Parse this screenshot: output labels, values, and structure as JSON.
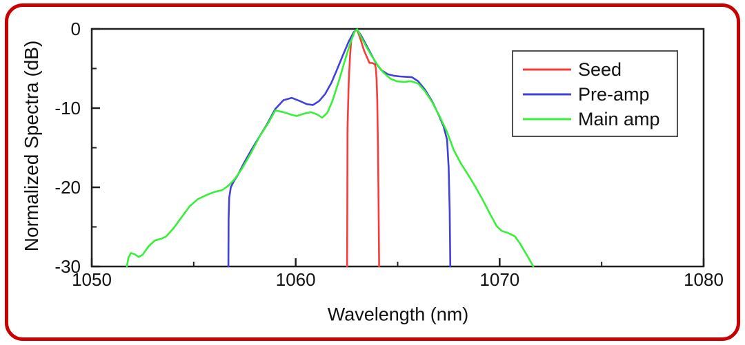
{
  "frame": {
    "border_color": "#c90000"
  },
  "axis": {
    "spine_color": "#1f1f1f",
    "tick_label_color": "#111111",
    "tick_label_font_px": 26
  },
  "legend_box": {
    "border_color": "#515151",
    "background": "#ffffff"
  },
  "chart_data": {
    "type": "line",
    "title": "",
    "xlabel": "Wavelength (nm)",
    "ylabel": "Normalized Spectra (dB)",
    "xlim": [
      1050,
      1080
    ],
    "ylim": [
      -30,
      0
    ],
    "x_major_ticks": [
      1050,
      1060,
      1070,
      1080
    ],
    "x_minor_ticks": [
      1055,
      1065,
      1075
    ],
    "y_major_ticks": [
      0,
      -10,
      -20,
      -30
    ],
    "y_minor_ticks": [
      -5,
      -15,
      -25
    ],
    "grid": false,
    "legend": {
      "position": "top-right",
      "entries": [
        "Seed",
        "Pre-amp",
        "Main amp"
      ]
    },
    "series": [
      {
        "name": "Seed",
        "color": "#fb3a3a",
        "points": [
          [
            1062.52,
            -30
          ],
          [
            1062.54,
            -12.5
          ],
          [
            1062.6,
            -6.8
          ],
          [
            1062.67,
            -3.2
          ],
          [
            1062.73,
            -1.2
          ],
          [
            1062.85,
            -0.4
          ],
          [
            1063.0,
            -0.05
          ],
          [
            1063.15,
            -1.1
          ],
          [
            1063.35,
            -2.7
          ],
          [
            1063.55,
            -3.9
          ],
          [
            1063.62,
            -4.3
          ],
          [
            1063.75,
            -4.3
          ],
          [
            1063.88,
            -4.45
          ],
          [
            1063.93,
            -5.0
          ],
          [
            1063.97,
            -6.5
          ],
          [
            1064.0,
            -9.0
          ],
          [
            1064.04,
            -16.0
          ],
          [
            1064.07,
            -24.0
          ],
          [
            1064.09,
            -30
          ]
        ]
      },
      {
        "name": "Pre-amp",
        "color": "#4040dd",
        "points": [
          [
            1056.7,
            -30
          ],
          [
            1056.71,
            -24.0
          ],
          [
            1056.74,
            -21.3
          ],
          [
            1056.82,
            -20.0
          ],
          [
            1056.95,
            -19.3
          ],
          [
            1057.15,
            -18.5
          ],
          [
            1057.45,
            -17.0
          ],
          [
            1057.8,
            -15.4
          ],
          [
            1058.2,
            -13.7
          ],
          [
            1058.6,
            -12.0
          ],
          [
            1059.0,
            -10.1
          ],
          [
            1059.4,
            -9.0
          ],
          [
            1059.8,
            -8.7
          ],
          [
            1060.2,
            -9.1
          ],
          [
            1060.55,
            -9.5
          ],
          [
            1060.85,
            -9.6
          ],
          [
            1061.15,
            -9.1
          ],
          [
            1061.45,
            -8.2
          ],
          [
            1061.75,
            -6.8
          ],
          [
            1062.0,
            -5.3
          ],
          [
            1062.3,
            -3.4
          ],
          [
            1062.6,
            -1.6
          ],
          [
            1062.85,
            -0.4
          ],
          [
            1063.0,
            -0.05
          ],
          [
            1063.2,
            -0.8
          ],
          [
            1063.45,
            -2.0
          ],
          [
            1063.7,
            -3.2
          ],
          [
            1063.95,
            -4.4
          ],
          [
            1064.2,
            -5.2
          ],
          [
            1064.5,
            -5.7
          ],
          [
            1064.8,
            -5.9
          ],
          [
            1065.1,
            -6.0
          ],
          [
            1065.4,
            -6.05
          ],
          [
            1065.7,
            -6.1
          ],
          [
            1066.0,
            -6.6
          ],
          [
            1066.35,
            -7.7
          ],
          [
            1066.7,
            -9.2
          ],
          [
            1067.0,
            -10.8
          ],
          [
            1067.25,
            -12.3
          ],
          [
            1067.42,
            -14.0
          ],
          [
            1067.5,
            -17.5
          ],
          [
            1067.55,
            -23.0
          ],
          [
            1067.58,
            -30
          ]
        ]
      },
      {
        "name": "Main amp",
        "color": "#37f037",
        "points": [
          [
            1051.72,
            -30
          ],
          [
            1051.8,
            -28.9
          ],
          [
            1051.92,
            -28.3
          ],
          [
            1052.1,
            -28.45
          ],
          [
            1052.3,
            -28.8
          ],
          [
            1052.5,
            -28.5
          ],
          [
            1052.8,
            -27.4
          ],
          [
            1053.1,
            -26.7
          ],
          [
            1053.4,
            -26.5
          ],
          [
            1053.65,
            -26.2
          ],
          [
            1054.0,
            -25.2
          ],
          [
            1054.4,
            -23.8
          ],
          [
            1054.8,
            -22.4
          ],
          [
            1055.2,
            -21.5
          ],
          [
            1055.6,
            -21.0
          ],
          [
            1056.0,
            -20.6
          ],
          [
            1056.4,
            -20.35
          ],
          [
            1056.7,
            -19.8
          ],
          [
            1057.0,
            -19.0
          ],
          [
            1057.35,
            -17.7
          ],
          [
            1057.8,
            -15.7
          ],
          [
            1058.25,
            -13.5
          ],
          [
            1058.65,
            -11.9
          ],
          [
            1059.0,
            -10.3
          ],
          [
            1059.4,
            -10.5
          ],
          [
            1059.75,
            -10.8
          ],
          [
            1060.05,
            -11.0
          ],
          [
            1060.4,
            -10.7
          ],
          [
            1060.75,
            -10.5
          ],
          [
            1061.05,
            -10.8
          ],
          [
            1061.3,
            -11.2
          ],
          [
            1061.55,
            -10.6
          ],
          [
            1061.8,
            -9.1
          ],
          [
            1062.1,
            -6.7
          ],
          [
            1062.4,
            -4.1
          ],
          [
            1062.7,
            -1.6
          ],
          [
            1062.9,
            -0.3
          ],
          [
            1063.02,
            -0.05
          ],
          [
            1063.2,
            -1.0
          ],
          [
            1063.45,
            -2.2
          ],
          [
            1063.7,
            -3.3
          ],
          [
            1064.0,
            -4.5
          ],
          [
            1064.3,
            -5.5
          ],
          [
            1064.65,
            -6.3
          ],
          [
            1064.95,
            -6.6
          ],
          [
            1065.3,
            -6.7
          ],
          [
            1065.65,
            -6.6
          ],
          [
            1066.0,
            -6.9
          ],
          [
            1066.35,
            -7.9
          ],
          [
            1066.7,
            -9.3
          ],
          [
            1067.05,
            -11.0
          ],
          [
            1067.4,
            -12.9
          ],
          [
            1067.75,
            -15.3
          ],
          [
            1068.1,
            -17.0
          ],
          [
            1068.45,
            -18.4
          ],
          [
            1068.8,
            -19.9
          ],
          [
            1069.15,
            -21.5
          ],
          [
            1069.5,
            -23.2
          ],
          [
            1069.85,
            -24.9
          ],
          [
            1070.1,
            -25.5
          ],
          [
            1070.45,
            -25.8
          ],
          [
            1070.75,
            -26.2
          ],
          [
            1071.0,
            -27.1
          ],
          [
            1071.25,
            -28.2
          ],
          [
            1071.5,
            -29.3
          ],
          [
            1071.65,
            -30
          ]
        ]
      }
    ]
  }
}
